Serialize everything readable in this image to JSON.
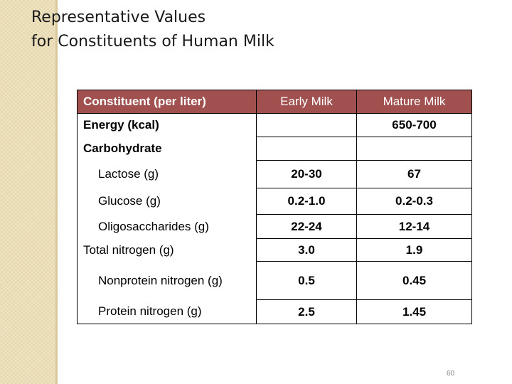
{
  "slide": {
    "title_line1": "Representative Values",
    "title_line2": "for Constituents of Human Milk",
    "page_number": "60"
  },
  "table": {
    "headers": {
      "constituent": "Constituent ",
      "constituent_suffix": "(per liter)",
      "early": "Early Milk",
      "mature": "Mature Milk"
    },
    "rows": [
      {
        "label": "Energy (kcal)",
        "early": "",
        "mature": "650-700"
      },
      {
        "label": "Carbohydrate",
        "early": "",
        "mature": ""
      },
      {
        "label": "Lactose (g)",
        "early": "20-30",
        "mature": "67"
      },
      {
        "label": "Glucose (g)",
        "early": "0.2-1.0",
        "mature": "0.2-0.3"
      },
      {
        "label": "Oligosaccharides (g)",
        "early": "22-24",
        "mature": "12-14"
      },
      {
        "label": "Total nitrogen (g)",
        "early": "3.0",
        "mature": "1.9"
      },
      {
        "label": "Nonprotein nitrogen (g)",
        "early": "0.5",
        "mature": "0.45"
      },
      {
        "label": "Protein nitrogen (g)",
        "early": "2.5",
        "mature": "1.45"
      }
    ]
  }
}
